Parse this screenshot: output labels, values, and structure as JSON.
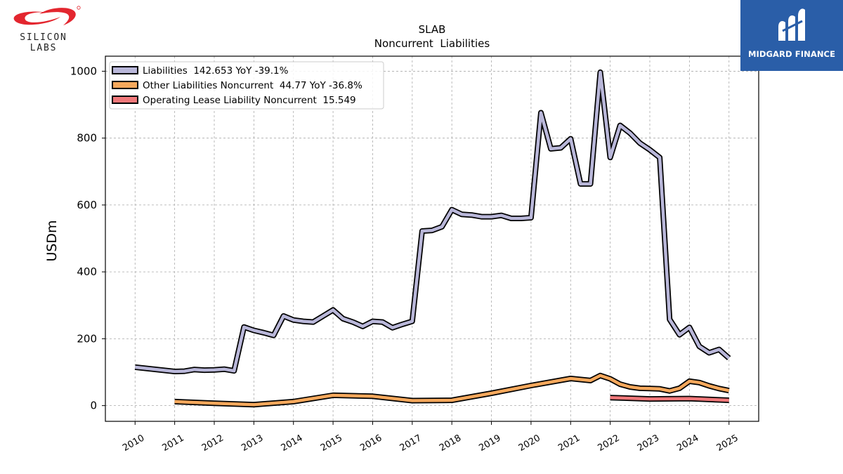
{
  "logos": {
    "left_brand": "SILICON LABS",
    "right_brand": "MIDGARD FINANCE",
    "brand_red": "#e3262f",
    "brand_blue": "#2a5ea8"
  },
  "chart_data": {
    "type": "line",
    "title": "SLAB",
    "subtitle": "Noncurrent  Liabilities",
    "xlabel": "",
    "ylabel": "USDm",
    "xlim": [
      2009.25,
      2025.75
    ],
    "ylim": [
      -47,
      1045
    ],
    "yticks": [
      0,
      200,
      400,
      600,
      800,
      1000
    ],
    "xticks": [
      2010,
      2011,
      2012,
      2013,
      2014,
      2015,
      2016,
      2017,
      2018,
      2019,
      2020,
      2021,
      2022,
      2023,
      2024,
      2025
    ],
    "grid": true,
    "legend_position": "top-left",
    "series": [
      {
        "name": "Liabilities  142.653 YoY -39.1%",
        "color": "#b9b7d9",
        "x": [
          2010.0,
          2011.0,
          2011.25,
          2011.5,
          2011.75,
          2012.0,
          2012.25,
          2012.5,
          2012.75,
          2013.0,
          2013.25,
          2013.5,
          2013.75,
          2014.0,
          2014.25,
          2014.5,
          2014.75,
          2015.0,
          2015.25,
          2015.5,
          2015.75,
          2016.0,
          2016.25,
          2016.5,
          2016.75,
          2017.0,
          2017.25,
          2017.5,
          2017.75,
          2018.0,
          2018.25,
          2018.5,
          2018.75,
          2019.0,
          2019.25,
          2019.5,
          2019.75,
          2020.0,
          2020.25,
          2020.5,
          2020.75,
          2021.0,
          2021.25,
          2021.5,
          2021.75,
          2022.0,
          2022.25,
          2022.5,
          2022.75,
          2023.0,
          2023.25,
          2023.5,
          2023.75,
          2024.0,
          2024.25,
          2024.5,
          2024.75,
          2025.0
        ],
        "values": [
          115,
          102,
          103,
          108,
          106,
          107,
          109,
          104,
          235,
          225,
          218,
          210,
          268,
          256,
          252,
          250,
          268,
          286,
          260,
          250,
          237,
          252,
          250,
          233,
          243,
          252,
          522,
          524,
          535,
          586,
          572,
          570,
          565,
          565,
          569,
          560,
          560,
          562,
          876,
          768,
          771,
          798,
          663,
          663,
          997,
          742,
          838,
          815,
          785,
          765,
          742,
          258,
          212,
          234,
          177,
          158,
          168,
          142
        ]
      },
      {
        "name": "Other Liabilities Noncurrent  44.77 YoY -36.8%",
        "color": "#f5a85c",
        "x": [
          2011.0,
          2012.0,
          2013.0,
          2014.0,
          2015.0,
          2016.0,
          2017.0,
          2018.0,
          2019.0,
          2020.0,
          2021.0,
          2021.5,
          2021.75,
          2022.0,
          2022.25,
          2022.5,
          2022.75,
          2023.0,
          2023.25,
          2023.5,
          2023.75,
          2024.0,
          2024.25,
          2024.5,
          2024.75,
          2025.0
        ],
        "values": [
          12,
          7,
          3,
          12,
          31,
          28,
          15,
          16,
          37,
          60,
          81,
          75,
          90,
          80,
          64,
          56,
          52,
          51,
          50,
          44,
          52,
          73,
          69,
          59,
          51,
          45
        ]
      },
      {
        "name": "Operating Lease Liability Noncurrent  15.549",
        "color": "#f0787a",
        "x": [
          2022.0,
          2023.0,
          2024.0,
          2025.0
        ],
        "values": [
          24,
          20,
          21,
          16
        ]
      }
    ]
  }
}
